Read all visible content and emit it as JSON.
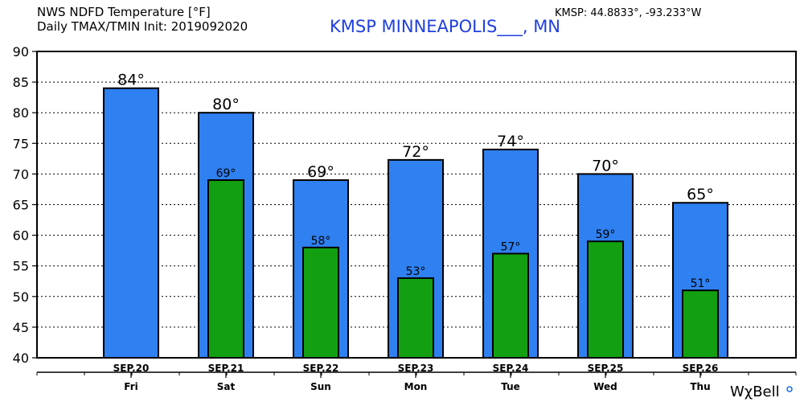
{
  "header": {
    "title_line1": "NWS NDFD Temperature [°F]",
    "title_line2": "Daily TMAX/TMIN Init: 2019092020",
    "station": "KMSP MINNEAPOLIS___, MN",
    "coords": "KMSP: 44.8833°, -93.233°W"
  },
  "brand": {
    "text": "WχBell",
    "dot_color": "#1e6fe8"
  },
  "colors": {
    "tmax": "#2f80f0",
    "tmin": "#12a012",
    "grid": "#000000"
  },
  "chart_data": {
    "type": "bar",
    "categories": [
      "SEP.20",
      "SEP.21",
      "SEP.22",
      "SEP.23",
      "SEP.24",
      "SEP.25",
      "SEP.26"
    ],
    "days": [
      "Fri",
      "Sat",
      "Sun",
      "Mon",
      "Tue",
      "Wed",
      "Thu"
    ],
    "series": [
      {
        "values": [
          84,
          80,
          69,
          72.3,
          74,
          70,
          65.3
        ]
      },
      {
        "values": [
          null,
          69,
          58,
          53,
          57,
          59,
          51
        ]
      }
    ],
    "max_labels": [
      "84°",
      "80°",
      "69°",
      "72°",
      "74°",
      "70°",
      "65°"
    ],
    "min_labels": [
      "",
      "69°",
      "58°",
      "53°",
      "57°",
      "59°",
      "51°"
    ],
    "yticks": [
      "40",
      "45",
      "50",
      "55",
      "60",
      "65",
      "70",
      "75",
      "80",
      "85",
      "90"
    ],
    "ylim": [
      40,
      90
    ],
    "grid": true
  }
}
